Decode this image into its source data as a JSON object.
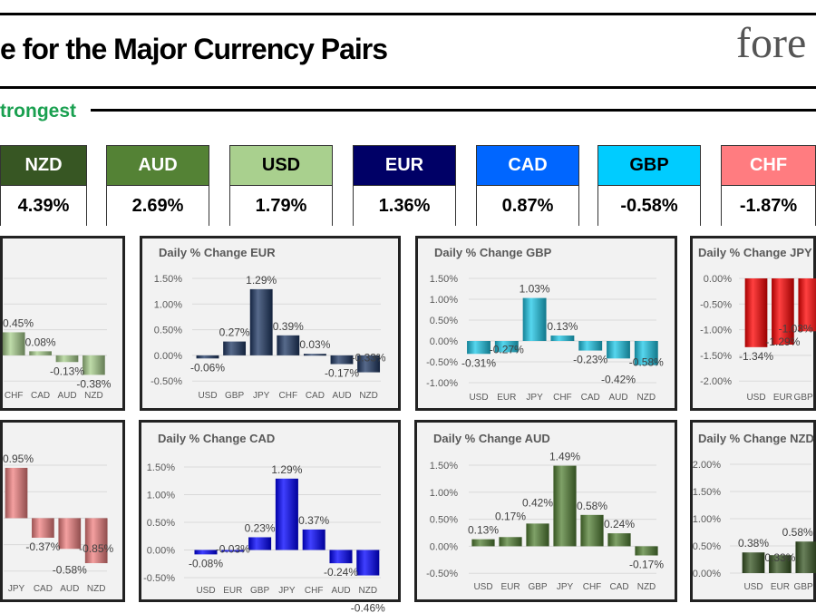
{
  "header": {
    "title": "e for the Major Currency Pairs",
    "logo_text": "fore",
    "strongest_label": "trongest"
  },
  "strength": [
    {
      "currency": "NZD",
      "value": "4.39%",
      "color": "#375623",
      "text_color": "#ffffff"
    },
    {
      "currency": "AUD",
      "value": "2.69%",
      "color": "#548235",
      "text_color": "#ffffff"
    },
    {
      "currency": "USD",
      "value": "1.79%",
      "color": "#a9d08e",
      "text_color": "#000000"
    },
    {
      "currency": "EUR",
      "value": "1.36%",
      "color": "#000066",
      "text_color": "#ffffff"
    },
    {
      "currency": "CAD",
      "value": "0.87%",
      "color": "#0066ff",
      "text_color": "#ffffff"
    },
    {
      "currency": "GBP",
      "value": "-0.58%",
      "color": "#00ccff",
      "text_color": "#000000"
    },
    {
      "currency": "CHF",
      "value": "-1.87%",
      "color": "#ff7c80",
      "text_color": "#ffffff"
    }
  ],
  "chart_data": [
    {
      "id": "left-top",
      "type": "bar",
      "title": "",
      "color": "#a9d08e",
      "yticks": [],
      "categories": [
        "CHF",
        "CAD",
        "AUD",
        "NZD"
      ],
      "values": [
        0.45,
        0.08,
        -0.13,
        -0.38
      ],
      "labels": [
        "0.45%",
        "0.08%",
        "-0.13%",
        "-0.38%"
      ]
    },
    {
      "id": "eur",
      "type": "bar",
      "title": "Daily % Change EUR",
      "color": "#1f3864",
      "yticks": [
        "1.50%",
        "1.00%",
        "0.50%",
        "0.00%",
        "-0.50%"
      ],
      "categories": [
        "USD",
        "GBP",
        "JPY",
        "CHF",
        "CAD",
        "AUD",
        "NZD"
      ],
      "values": [
        -0.06,
        0.27,
        1.29,
        0.39,
        0.03,
        -0.17,
        -0.33
      ],
      "labels": [
        "-0.06%",
        "0.27%",
        "1.29%",
        "0.39%",
        "0.03%",
        "-0.17%",
        "-0.33%"
      ]
    },
    {
      "id": "gbp",
      "type": "bar",
      "title": "Daily % Change GBP",
      "color": "#1ec8e8",
      "yticks": [
        "1.50%",
        "1.00%",
        "0.50%",
        "0.00%",
        "-0.50%",
        "-1.00%"
      ],
      "categories": [
        "USD",
        "EUR",
        "JPY",
        "CHF",
        "CAD",
        "AUD",
        "NZD"
      ],
      "values": [
        -0.31,
        -0.27,
        1.03,
        0.13,
        -0.23,
        -0.42,
        -0.58
      ],
      "labels": [
        "-0.31%",
        "-0.27%",
        "1.03%",
        "0.13%",
        "-0.23%",
        "-0.42%",
        "-0.58%"
      ]
    },
    {
      "id": "jpy",
      "type": "bar",
      "title": "Daily % Change JPY",
      "color": "#ff0000",
      "yticks": [
        "0.00%",
        "-0.50%",
        "-1.00%",
        "-1.50%",
        "-2.00%"
      ],
      "categories": [
        "USD",
        "EUR",
        "GBP"
      ],
      "values": [
        -1.34,
        -1.29,
        -1.03
      ],
      "labels": [
        "-1.34%",
        "-1.29%",
        "-1.03%"
      ]
    },
    {
      "id": "left-bottom",
      "type": "bar",
      "title": "",
      "color": "#f08080",
      "yticks": [],
      "categories": [
        "JPY",
        "CAD",
        "AUD",
        "NZD"
      ],
      "values": [
        0.95,
        -0.37,
        -0.58,
        -0.85
      ],
      "labels": [
        "0.95%",
        "-0.37%",
        "-0.58%",
        "-0.85%"
      ]
    },
    {
      "id": "cad",
      "type": "bar",
      "title": "Daily % Change CAD",
      "color": "#0000ff",
      "yticks": [
        "1.50%",
        "1.00%",
        "0.50%",
        "0.00%",
        "-0.50%"
      ],
      "categories": [
        "USD",
        "EUR",
        "GBP",
        "JPY",
        "CHF",
        "AUD",
        "NZD"
      ],
      "values": [
        -0.08,
        -0.03,
        0.23,
        1.29,
        0.37,
        -0.24,
        -0.46
      ],
      "labels": [
        "-0.08%",
        "-0.03%",
        "0.23%",
        "1.29%",
        "0.37%",
        "-0.24%",
        "-0.46%"
      ]
    },
    {
      "id": "aud",
      "type": "bar",
      "title": "Daily % Change AUD",
      "color": "#548235",
      "yticks": [
        "1.50%",
        "1.00%",
        "0.50%",
        "0.00%",
        "-0.50%"
      ],
      "categories": [
        "USD",
        "EUR",
        "GBP",
        "JPY",
        "CHF",
        "CAD",
        "NZD"
      ],
      "values": [
        0.13,
        0.17,
        0.42,
        1.49,
        0.58,
        0.24,
        -0.17
      ],
      "labels": [
        "0.13%",
        "0.17%",
        "0.42%",
        "1.49%",
        "0.58%",
        "0.24%",
        "-0.17%"
      ]
    },
    {
      "id": "nzd",
      "type": "bar",
      "title": "Daily % Change NZD",
      "color": "#375623",
      "yticks": [
        "2.00%",
        "1.50%",
        "1.00%",
        "0.50%",
        "0.00%"
      ],
      "categories": [
        "USD",
        "EUR",
        "GBP"
      ],
      "values": [
        0.38,
        0.33,
        0.58
      ],
      "labels": [
        "0.38%",
        "0.33%",
        "0.58%"
      ]
    }
  ]
}
